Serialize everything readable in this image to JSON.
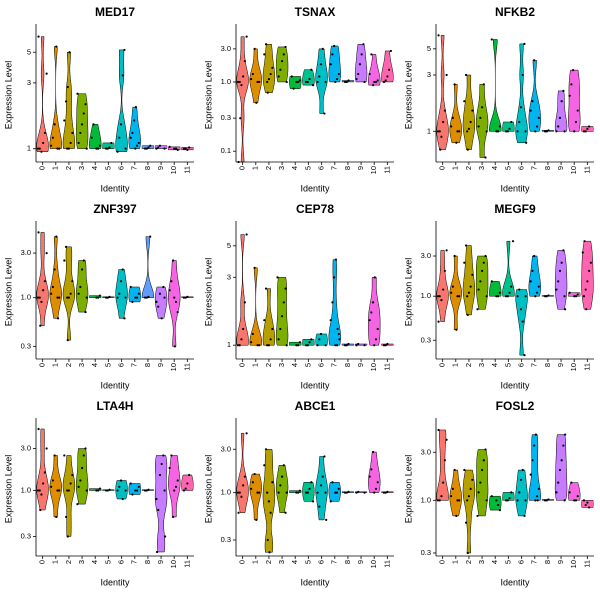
{
  "chart_data": [
    {
      "type": "violin",
      "title": "MED17",
      "xlabel": "Identity",
      "ylabel": "Expression Level",
      "log_y": true,
      "categories": [
        "0",
        "1",
        "2",
        "3",
        "4",
        "5",
        "6",
        "7",
        "8",
        "9",
        "10",
        "11"
      ],
      "ylim": [
        0.8,
        7.5
      ],
      "yticks": [
        1,
        3,
        5
      ],
      "colors": [
        "#F8766D",
        "#DE8C00",
        "#B79F00",
        "#7CAE00",
        "#00BA38",
        "#00C08B",
        "#00BFC4",
        "#00B4F0",
        "#619CFF",
        "#C77CFF",
        "#F564E3",
        "#FF64B0"
      ],
      "groups": [
        [
          1,
          1,
          0.95,
          1.1,
          1.3,
          3.5,
          6.5
        ],
        [
          1,
          1,
          1.05,
          1.2,
          1.5,
          5.5
        ],
        [
          1,
          1,
          1.1,
          1.3,
          1.6,
          2.2,
          2.8,
          5
        ],
        [
          1,
          1.1,
          1.3,
          1.5,
          1.8,
          2.1,
          2.5
        ],
        [
          1,
          1,
          1.05,
          1.2,
          1.5
        ],
        [
          1,
          1,
          1.02,
          1.1
        ],
        [
          1,
          0.95,
          1.2,
          1.5,
          3.4,
          5.2
        ],
        [
          1,
          1.05,
          1.1,
          1.2,
          1.3,
          1.6,
          2
        ],
        [
          1,
          1,
          1.02,
          1.05
        ],
        [
          1,
          1,
          1.02,
          1.05
        ],
        [
          1,
          1,
          0.98,
          1.03
        ],
        [
          1,
          1,
          0.98,
          1.02
        ]
      ]
    },
    {
      "type": "violin",
      "title": "TSNAX",
      "xlabel": "Identity",
      "ylabel": "Expression Level",
      "log_y": true,
      "categories": [
        "0",
        "1",
        "2",
        "3",
        "4",
        "5",
        "6",
        "7",
        "8",
        "9",
        "10",
        "11"
      ],
      "ylim": [
        0.07,
        6
      ],
      "yticks": [
        0.1,
        0.3,
        {
          "value": 1,
          "label": "1.0"
        },
        {
          "value": 3,
          "label": "3.0"
        }
      ],
      "colors": [
        "#F8766D",
        "#DE8C00",
        "#B79F00",
        "#7CAE00",
        "#00BA38",
        "#00C08B",
        "#00BFC4",
        "#00B4F0",
        "#619CFF",
        "#C77CFF",
        "#F564E3",
        "#FF64B0"
      ],
      "groups": [
        [
          1,
          1,
          0.9,
          1.2,
          2,
          4.5,
          0.07,
          0.3
        ],
        [
          1,
          1,
          1.1,
          1.3,
          3,
          0.5
        ],
        [
          1,
          1.1,
          1.3,
          1.6,
          2.5,
          3.5,
          0.7
        ],
        [
          1,
          1.2,
          1.5,
          2,
          2.5,
          3.2
        ],
        [
          1,
          1,
          1.05,
          1.2,
          0.8
        ],
        [
          1,
          1,
          1.1,
          1.5,
          0.9
        ],
        [
          1,
          1,
          1.2,
          1.8,
          3,
          0.35
        ],
        [
          1,
          1.1,
          1.3,
          1.8,
          2.5,
          3.3
        ],
        [
          1,
          1,
          1.05
        ],
        [
          1,
          1.1,
          1.3,
          1.8,
          2.5,
          3.5
        ],
        [
          1,
          1,
          1.05,
          1.3,
          2.5,
          0.9
        ],
        [
          1,
          1.05,
          1.2,
          1.5,
          2.8
        ]
      ]
    },
    {
      "type": "violin",
      "title": "NFKB2",
      "xlabel": "Identity",
      "ylabel": "Expression Level",
      "log_y": true,
      "categories": [
        "0",
        "1",
        "2",
        "3",
        "4",
        "5",
        "6",
        "7",
        "8",
        "9",
        "10",
        "11"
      ],
      "ylim": [
        0.55,
        7.5
      ],
      "yticks": [
        1,
        3,
        5
      ],
      "colors": [
        "#F8766D",
        "#DE8C00",
        "#B79F00",
        "#7CAE00",
        "#00BA38",
        "#00C08B",
        "#00BFC4",
        "#00B4F0",
        "#619CFF",
        "#C77CFF",
        "#F564E3",
        "#FF64B0"
      ],
      "groups": [
        [
          1,
          1,
          0.9,
          1.2,
          1.5,
          3,
          6.5,
          0.7
        ],
        [
          1,
          1,
          1.1,
          1.3,
          2.5,
          0.8
        ],
        [
          1,
          1.05,
          1.2,
          1.5,
          1.8,
          3,
          0.7
        ],
        [
          1,
          1.1,
          1.3,
          1.6,
          2.5,
          0.6
        ],
        [
          1,
          1,
          1.1,
          6
        ],
        [
          1,
          1,
          1.05,
          1.2
        ],
        [
          1,
          1,
          1.2,
          1.6,
          3,
          5.5,
          0.8
        ],
        [
          1,
          1.1,
          1.3,
          1.5,
          1.8,
          4
        ],
        [
          1,
          1,
          1.02
        ],
        [
          1,
          1,
          1.1,
          1.3,
          1.8,
          2.2
        ],
        [
          1,
          1.2,
          1.5,
          2,
          2.5,
          3.3
        ],
        [
          1,
          1,
          1.05,
          1.1
        ]
      ]
    },
    {
      "type": "violin",
      "title": "ZNF397",
      "xlabel": "Identity",
      "ylabel": "Expression Level",
      "log_y": true,
      "categories": [
        "0",
        "1",
        "2",
        "3",
        "4",
        "5",
        "6",
        "7",
        "8",
        "9",
        "10",
        "11"
      ],
      "ylim": [
        0.22,
        6
      ],
      "yticks": [
        0.3,
        {
          "value": 1,
          "label": "1.0"
        },
        {
          "value": 3,
          "label": "3.0"
        }
      ],
      "colors": [
        "#F8766D",
        "#DE8C00",
        "#B79F00",
        "#7CAE00",
        "#00BA38",
        "#00C08B",
        "#00BFC4",
        "#00B4F0",
        "#619CFF",
        "#C77CFF",
        "#F564E3",
        "#FF64B0"
      ],
      "groups": [
        [
          1,
          1,
          0.9,
          1.2,
          1.5,
          3,
          5,
          0.5
        ],
        [
          1,
          1,
          1.1,
          1.3,
          2,
          4.5,
          0.6
        ],
        [
          1,
          1,
          1.1,
          1.5,
          2.5,
          3.5,
          0.35
        ],
        [
          1,
          1.1,
          1.3,
          2,
          2.5,
          0.7
        ],
        [
          1,
          1,
          1.05
        ],
        [
          1,
          1,
          1.02
        ],
        [
          1,
          1,
          1.1,
          1.5,
          2,
          0.6
        ],
        [
          1,
          1,
          1.1,
          1.3,
          0.9
        ],
        [
          1,
          1,
          1.02,
          4.5
        ],
        [
          1,
          0.9,
          0.8,
          1.1,
          0.6,
          1.3
        ],
        [
          1,
          0.9,
          0.7,
          1.2,
          1.5,
          2.5,
          0.3
        ],
        [
          1,
          1,
          1.02
        ]
      ]
    },
    {
      "type": "violin",
      "title": "CEP78",
      "xlabel": "Identity",
      "ylabel": "Expression Level",
      "log_y": true,
      "categories": [
        "0",
        "1",
        "2",
        "3",
        "4",
        "5",
        "6",
        "7",
        "8",
        "9",
        "10",
        "11"
      ],
      "ylim": [
        0.8,
        7
      ],
      "yticks": [
        1,
        3,
        5
      ],
      "colors": [
        "#F8766D",
        "#DE8C00",
        "#B79F00",
        "#7CAE00",
        "#00BA38",
        "#00C08B",
        "#00BFC4",
        "#00B4F0",
        "#619CFF",
        "#C77CFF",
        "#F564E3",
        "#FF64B0"
      ],
      "groups": [
        [
          1,
          1,
          1.1,
          1.3,
          2,
          6
        ],
        [
          1,
          1,
          1.05,
          1.2,
          3.5
        ],
        [
          1,
          1,
          1.1,
          1.3,
          1.5,
          2.5
        ],
        [
          1,
          1.1,
          1.3,
          1.6,
          2,
          2.5,
          3
        ],
        [
          1,
          1,
          1.05
        ],
        [
          1,
          1,
          1.05,
          1.1
        ],
        [
          1,
          1,
          1.1,
          1.2
        ],
        [
          1,
          1,
          1.2,
          1.5,
          2,
          3,
          4,
          1.3,
          1.1
        ],
        [
          1,
          1,
          1.02
        ],
        [
          1,
          1,
          1.02
        ],
        [
          1,
          1.1,
          1.3,
          1.5,
          1.7,
          2,
          3
        ],
        [
          1,
          1,
          1.02
        ]
      ]
    },
    {
      "type": "violin",
      "title": "MEGF9",
      "xlabel": "Identity",
      "ylabel": "Expression Level",
      "log_y": true,
      "categories": [
        "0",
        "1",
        "2",
        "3",
        "4",
        "5",
        "6",
        "7",
        "8",
        "9",
        "10",
        "11"
      ],
      "ylim": [
        0.18,
        7
      ],
      "yticks": [
        0.3,
        {
          "value": 1,
          "label": "1.0"
        },
        {
          "value": 3,
          "label": "3.0"
        }
      ],
      "colors": [
        "#F8766D",
        "#DE8C00",
        "#B79F00",
        "#7CAE00",
        "#00BA38",
        "#00C08B",
        "#00BFC4",
        "#00B4F0",
        "#619CFF",
        "#C77CFF",
        "#F564E3",
        "#FF64B0"
      ],
      "groups": [
        [
          1,
          1,
          0.9,
          1.2,
          2,
          3.5,
          0.5
        ],
        [
          1,
          1,
          1.1,
          1.3,
          3,
          0.4
        ],
        [
          1,
          1.1,
          1.3,
          1.8,
          2.5,
          4,
          0.6
        ],
        [
          1,
          1.2,
          1.5,
          2,
          2.5,
          3,
          0.7
        ],
        [
          1,
          1,
          1.1,
          1.5
        ],
        [
          1,
          1,
          1.1,
          1.3,
          4.5
        ],
        [
          1,
          1,
          1.2,
          0.7,
          0.5,
          0.2
        ],
        [
          1,
          1.1,
          1.3,
          1.5,
          2,
          3
        ],
        [
          1,
          1,
          1.02
        ],
        [
          1,
          1.2,
          1.5,
          2,
          2.5,
          3.5,
          0.7
        ],
        [
          1,
          1,
          1.05,
          1.1
        ],
        [
          1,
          1.2,
          1.5,
          2,
          2.5,
          3.3,
          4.5,
          0.7
        ]
      ]
    },
    {
      "type": "violin",
      "title": "LTA4H",
      "xlabel": "Identity",
      "ylabel": "Expression Level",
      "log_y": true,
      "categories": [
        "0",
        "1",
        "2",
        "3",
        "4",
        "5",
        "6",
        "7",
        "8",
        "9",
        "10",
        "11"
      ],
      "ylim": [
        0.18,
        6
      ],
      "yticks": [
        0.3,
        {
          "value": 1,
          "label": "1.0"
        },
        {
          "value": 3,
          "label": "3.0"
        }
      ],
      "colors": [
        "#F8766D",
        "#DE8C00",
        "#B79F00",
        "#7CAE00",
        "#00BA38",
        "#00C08B",
        "#00BFC4",
        "#00B4F0",
        "#619CFF",
        "#C77CFF",
        "#F564E3",
        "#FF64B0"
      ],
      "groups": [
        [
          1,
          1,
          0.9,
          1.2,
          1.6,
          3,
          5,
          0.6
        ],
        [
          1,
          1,
          1.1,
          1.3,
          2.5,
          0.5
        ],
        [
          1,
          1,
          1.2,
          1.5,
          2.5,
          0.5,
          0.3
        ],
        [
          1,
          1.1,
          1.3,
          1.8,
          2.5,
          3,
          0.7
        ],
        [
          1,
          1,
          1.05
        ],
        [
          1,
          1,
          1.02
        ],
        [
          1,
          1,
          1.1,
          1.3,
          0.8
        ],
        [
          1,
          1,
          1.1,
          1.2,
          0.9
        ],
        [
          1,
          1,
          1.02
        ],
        [
          1,
          0.8,
          0.6,
          1.5,
          2,
          2.5,
          0.3,
          0.2
        ],
        [
          1,
          1.1,
          1.3,
          1.8,
          2.5,
          0.5
        ],
        [
          1,
          1.05,
          1.2,
          1.5
        ]
      ]
    },
    {
      "type": "violin",
      "title": "ABCE1",
      "xlabel": "Identity",
      "ylabel": "Expression Level",
      "log_y": true,
      "categories": [
        "0",
        "1",
        "2",
        "3",
        "4",
        "5",
        "6",
        "7",
        "8",
        "9",
        "10",
        "11"
      ],
      "ylim": [
        0.2,
        6
      ],
      "yticks": [
        0.3,
        {
          "value": 1,
          "label": "1.0"
        },
        {
          "value": 3,
          "label": "3.0"
        }
      ],
      "colors": [
        "#F8766D",
        "#DE8C00",
        "#B79F00",
        "#7CAE00",
        "#00BA38",
        "#00C08B",
        "#00BFC4",
        "#00B4F0",
        "#619CFF",
        "#C77CFF",
        "#F564E3",
        "#FF64B0"
      ],
      "groups": [
        [
          1,
          1,
          0.9,
          1.2,
          1.5,
          4.5,
          0.6
        ],
        [
          1,
          1,
          1.1,
          1.3,
          1.6,
          0.5
        ],
        [
          1,
          0.8,
          0.6,
          1.3,
          2,
          3,
          0.3,
          0.22
        ],
        [
          1,
          1,
          1.2,
          1.5,
          2,
          0.6
        ],
        [
          1,
          1,
          1.05
        ],
        [
          1,
          1,
          1.1,
          1.3,
          0.8
        ],
        [
          1,
          1,
          0.7,
          1.2,
          1.5,
          2.5,
          0.5
        ],
        [
          1,
          1,
          1.1,
          0.8,
          1.3
        ],
        [
          1,
          1,
          1.02
        ],
        [
          1,
          1,
          1.02
        ],
        [
          1,
          1.1,
          1.3,
          1.5,
          1.8,
          2.8
        ],
        [
          1,
          1,
          1.02
        ]
      ]
    },
    {
      "type": "violin",
      "title": "FOSL2",
      "xlabel": "Identity",
      "ylabel": "Expression Level",
      "log_y": true,
      "categories": [
        "0",
        "1",
        "2",
        "3",
        "4",
        "5",
        "6",
        "7",
        "8",
        "9",
        "10",
        "11"
      ],
      "ylim": [
        0.28,
        6
      ],
      "yticks": [
        0.3,
        {
          "value": 1,
          "label": "1.0"
        },
        {
          "value": 3,
          "label": "3.0"
        }
      ],
      "colors": [
        "#F8766D",
        "#DE8C00",
        "#B79F00",
        "#7CAE00",
        "#00BA38",
        "#00C08B",
        "#00BFC4",
        "#00B4F0",
        "#619CFF",
        "#C77CFF",
        "#F564E3",
        "#FF64B0"
      ],
      "groups": [
        [
          1,
          1,
          1.1,
          1.5,
          2.5,
          4,
          5
        ],
        [
          1,
          1,
          1.1,
          1.3,
          2,
          0.7
        ],
        [
          1,
          1.1,
          1.3,
          1.6,
          2,
          0.6,
          0.3
        ],
        [
          1,
          1.2,
          1.5,
          2,
          2.5,
          3.2,
          0.7
        ],
        [
          1,
          0.9,
          0.8,
          1.1
        ],
        [
          1,
          1,
          1.05,
          1.2
        ],
        [
          1,
          1,
          1.2,
          1.6,
          2,
          0.7
        ],
        [
          1,
          1.1,
          1.3,
          1.8,
          2.5,
          3.5,
          4.5,
          1
        ],
        [
          1,
          1,
          1.02
        ],
        [
          1,
          1.2,
          1.5,
          2,
          2.5,
          3.5,
          4.5
        ],
        [
          1,
          1,
          1.1,
          1.2,
          1.5
        ],
        [
          1,
          0.9,
          0.95,
          0.85
        ]
      ]
    }
  ]
}
